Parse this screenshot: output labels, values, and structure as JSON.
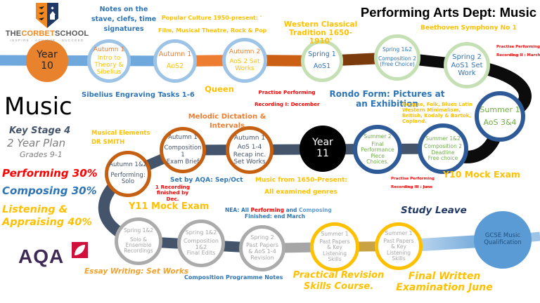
{
  "header": {
    "title": "Performing Arts Dept: Music"
  },
  "logo": {
    "the": "THE",
    "corbet": "CORBET",
    "school": "SCHOOL",
    "motto": "INSPIRE - ACHIEVE - SUCCEED"
  },
  "left_panel": {
    "subject": "Music",
    "key_stage": "Key Stage 4",
    "plan": "2 Year Plan",
    "grades": "Grades 9-1",
    "performing": "Performing 30%",
    "composing": "Composing 30%",
    "listening_line1": "Listening &",
    "listening_line2": "Appraising 40%"
  },
  "exam_board": {
    "name": "AQA"
  },
  "palette": {
    "band_blue": "#6fa8dc",
    "band_orange": "#ed7d31",
    "band_burnt": "#cb5f14",
    "band_brown": "#7b3a0c",
    "band_black": "#0c0c0c",
    "band_slate": "#44546a",
    "band_gray": "#a6a6a6",
    "band_gold": "#c9a243",
    "grad_light": "#cfe2f3",
    "grad_dark": "#5b9bd5",
    "band_stub": "#9dc3e6",
    "performing_red": "#ff0000",
    "composing_blue": "#2e75b6",
    "listening_yellow": "#ffc000"
  },
  "nodes": [
    {
      "id": "year10",
      "fill": "#e8822d",
      "text": "#222222",
      "lines": [
        "Year",
        "10"
      ]
    },
    {
      "id": "a1intro",
      "ring": "#9dc3e6",
      "head": "#ed7d31",
      "text": "#ffc000",
      "lines": [
        "Autumn 1",
        "Intro to",
        "Theory &",
        "Sibelius"
      ]
    },
    {
      "id": "a1aos2",
      "ring": "#9dc3e6",
      "head": "#ed7d31",
      "text": "#ffc000",
      "lines": [
        "Autumn 1",
        "AoS2"
      ]
    },
    {
      "id": "a2set",
      "ring": "#9dc3e6",
      "head": "#ed7d31",
      "text": "#ffc000",
      "lines": [
        "Autumn 2",
        "AoS 2 Set",
        "Works"
      ]
    },
    {
      "id": "sp1",
      "ring": "#c5e0b4",
      "text": "#2e75b6",
      "lines": [
        "Spring 1",
        "AoS1"
      ]
    },
    {
      "id": "sp12",
      "ring": "#c5e0b4",
      "text": "#2e75b6",
      "lines": [
        "Spring 1&2",
        "Composition 2",
        "(Free Choice)"
      ]
    },
    {
      "id": "sp2set",
      "ring": "#c5e0b4",
      "text": "#2e75b6",
      "lines": [
        "Spring 2",
        "AoS1 Set",
        "Work"
      ]
    },
    {
      "id": "su1",
      "ring": "#2e5b97",
      "text": "#70ad47",
      "lines": [
        "Summer 1",
        "AoS 3&4"
      ]
    },
    {
      "id": "su12",
      "ring": "#2e5b97",
      "text": "#70ad47",
      "lines": [
        "Summer 1&2",
        "Composition 2",
        "Deadline",
        "Free choice"
      ]
    },
    {
      "id": "su2",
      "ring": "#2e5b97",
      "text": "#70ad47",
      "lines": [
        "Summer 2",
        "Final",
        "Performance",
        "Piece",
        "Choices."
      ]
    },
    {
      "id": "year11",
      "fill": "#000000",
      "text": "#ffffff",
      "lines": [
        "Year",
        "11"
      ]
    },
    {
      "id": "recap",
      "ring": "#c55f11",
      "text": "#44546a",
      "lines": [
        "Autumn 1",
        "AoS 1-4",
        "Recap inc.",
        "Set Works"
      ]
    },
    {
      "id": "comp1",
      "ring": "#c55f11",
      "text": "#44546a",
      "lines": [
        "Autumn 1",
        "Composition 1",
        "Exam Brief"
      ]
    },
    {
      "id": "a12perf",
      "ring": "#c55f11",
      "text": "#44546a",
      "lines": [
        "Autumn 1&2",
        "Performing:",
        "Solo"
      ]
    },
    {
      "id": "solo",
      "ring": "#ababab",
      "text": "#a6a6a6",
      "lines": [
        "Spring 1&2",
        "Solo &",
        "Ensemble",
        "Recordings"
      ]
    },
    {
      "id": "comp12",
      "ring": "#ababab",
      "text": "#a6a6a6",
      "lines": [
        "Spring 1&2",
        "Composition",
        "1&2",
        "Final Edits"
      ]
    },
    {
      "id": "sp2past",
      "ring": "#ababab",
      "text": "#a6a6a6",
      "lines": [
        "Spring 2",
        "Past Papers",
        "& AoS 1-4",
        "Revision"
      ]
    },
    {
      "id": "su1a",
      "ring": "#ffc000",
      "text": "#a6a6a6",
      "lines": [
        "Summer 1",
        "Past Papers",
        "& Key",
        "Listening",
        "Skills"
      ]
    },
    {
      "id": "su1b",
      "ring": "#ffc000",
      "text": "#a6a6a6",
      "lines": [
        "Summer 1",
        "Past Papers",
        "& Key",
        "Listening",
        "Skills"
      ]
    },
    {
      "id": "gcse",
      "fill": "#5b9bd5",
      "text": "#1f4e79",
      "lines": [
        "GCSE Music",
        "Qualification"
      ]
    }
  ],
  "annotations": [
    {
      "id": "notes_stave",
      "color": "#2e75b6",
      "lines": [
        "Notes on the",
        "stave, clefs, time",
        "signatures"
      ]
    },
    {
      "id": "sibelius",
      "color": "#2e75b6",
      "lines": [
        "Sibelius Engraving Tasks 1-6"
      ]
    },
    {
      "id": "pop_culture",
      "color": "#ffc000",
      "lines": [
        "Popular Culture 1950-present: '",
        "Film, Musical Theatre, Rock & Pop"
      ]
    },
    {
      "id": "queen",
      "color": "#ffc000",
      "lines": [
        "Queen"
      ]
    },
    {
      "id": "wct",
      "color": "#ffc000",
      "lines": [
        "Western Classical",
        "Tradition 1650-1910'"
      ]
    },
    {
      "id": "pp1",
      "color": "#ff0000",
      "lines": [
        "Practise Performing",
        "Recording I: December"
      ]
    },
    {
      "id": "rondo",
      "color": "#2e75b6",
      "lines": [
        "Rondo Form: Pictures at",
        "an Exhibition"
      ]
    },
    {
      "id": "beethoven",
      "color": "#ffc000",
      "lines": [
        "Beethoven Symphony No 1"
      ]
    },
    {
      "id": "pp2",
      "color": "#ff0000",
      "lines": [
        "Practise Performing",
        "Recording II : March"
      ]
    },
    {
      "id": "reggae",
      "color": "#ffc000",
      "lines": [
        "Reggae, Folk, Blues Latin",
        "Western Minimalism,",
        "British, Kodaly & Bartok,",
        "Copland."
      ]
    },
    {
      "id": "y10mock",
      "color": "#ffc000",
      "lines": [
        "Y10 Mock Exam"
      ]
    },
    {
      "id": "pp3",
      "color": "#ff0000",
      "lines": [
        "Practise Performing",
        "Recording III : June"
      ]
    },
    {
      "id": "melodic",
      "color": "#ed7d31",
      "lines": [
        "Melodic Dictation &",
        "Intervals"
      ]
    },
    {
      "id": "musical_elements",
      "color": "#ffc000",
      "lines": [
        "Musical Elements",
        "DR SMITH"
      ]
    },
    {
      "id": "setbyaqa",
      "color": "#2e75b6",
      "lines": [
        "Set by AQA: Sep/Oct"
      ]
    },
    {
      "id": "rec1",
      "color": "#ff0000",
      "lines": [
        "1 Recording",
        "finished by",
        "Dec."
      ]
    },
    {
      "id": "music1650",
      "color": "#ffc000",
      "lines": [
        "Music from 1650-Present:",
        "All examined genres"
      ]
    },
    {
      "id": "y11mock",
      "color": "#ffc000",
      "lines": [
        "Y11 Mock Exam"
      ]
    },
    {
      "id": "essay",
      "color": "#efa32e",
      "lines": [
        "Essay Writing: Set Works"
      ]
    },
    {
      "id": "compnotes",
      "color": "#2e75b6",
      "lines": [
        "Composition Programme Notes"
      ]
    },
    {
      "id": "practical",
      "color": "#ffc000",
      "lines": [
        "Practical Revision",
        "Skills Course."
      ]
    },
    {
      "id": "studyleave",
      "color": "#1f3864",
      "lines": [
        "Study Leave"
      ]
    },
    {
      "id": "finalwritten",
      "color": "#ffc000",
      "lines": [
        "Final Written",
        "Examination June"
      ]
    }
  ],
  "nea": {
    "prefix": "NEA: All ",
    "performing": "Performing",
    "mid": " and ",
    "composing": "Composing",
    "line2": "Finished: end March"
  }
}
